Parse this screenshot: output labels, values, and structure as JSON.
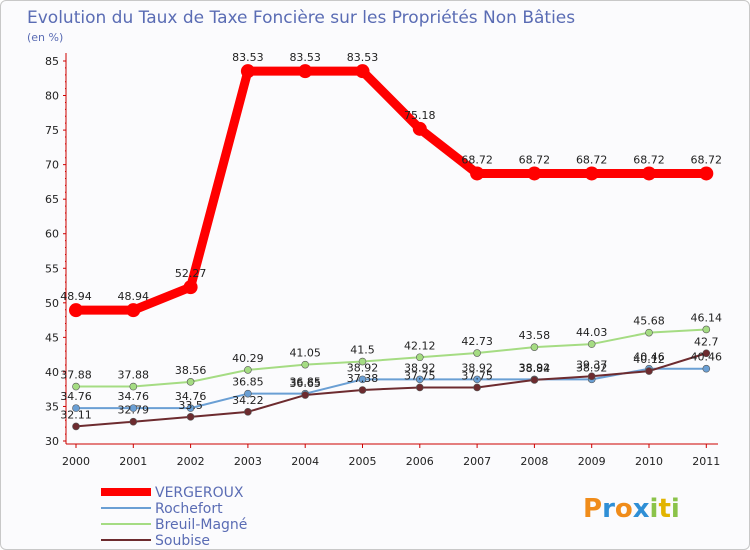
{
  "chart_data": {
    "type": "line",
    "title": "Evolution du Taux de Taxe Foncière sur les Propriétés Non Bâties",
    "subtitle": "(en %)",
    "xlabel": "",
    "ylabel": "",
    "ylim": [
      30,
      85
    ],
    "yticks": [
      "30",
      "35",
      "40",
      "45",
      "50",
      "55",
      "60",
      "65",
      "70",
      "75",
      "80",
      "85"
    ],
    "categories": [
      "2000",
      "2001",
      "2002",
      "2003",
      "2004",
      "2005",
      "2006",
      "2007",
      "2008",
      "2009",
      "2010",
      "2011"
    ],
    "series": [
      {
        "name": "VERGEROUX",
        "color": "#ff0000",
        "values": [
          48.94,
          48.94,
          52.27,
          83.53,
          83.53,
          83.53,
          75.18,
          68.72,
          68.72,
          68.72,
          68.72,
          68.72
        ],
        "labels": [
          "48.94",
          "48.94",
          "52.27",
          "83.53",
          "83.53",
          "83.53",
          "75.18",
          "68.72",
          "68.72",
          "68.72",
          "68.72",
          "68.72"
        ]
      },
      {
        "name": "Rochefort",
        "color": "#6a9fd4",
        "values": [
          34.76,
          34.76,
          34.76,
          36.85,
          36.85,
          38.92,
          38.92,
          38.92,
          38.92,
          38.92,
          40.46,
          40.46
        ],
        "labels": [
          "34.76",
          "34.76",
          "34.76",
          "36.85",
          "36.85",
          "38.92",
          "38.92",
          "38.92",
          "38.92",
          "38.92",
          "40.46",
          "40.46"
        ]
      },
      {
        "name": "Breuil-Magné",
        "color": "#a5dc83",
        "values": [
          37.88,
          37.88,
          38.56,
          40.29,
          41.05,
          41.5,
          42.12,
          42.73,
          43.58,
          44.03,
          45.68,
          46.14
        ],
        "labels": [
          "37.88",
          "37.88",
          "38.56",
          "40.29",
          "41.05",
          "41.5",
          "42.12",
          "42.73",
          "43.58",
          "44.03",
          "45.68",
          "46.14"
        ]
      },
      {
        "name": "Soubise",
        "color": "#6d2b2f",
        "values": [
          32.11,
          32.79,
          33.5,
          34.22,
          36.65,
          37.38,
          37.75,
          37.75,
          38.84,
          39.37,
          40.12,
          42.7
        ],
        "labels": [
          "32.11",
          "32.79",
          "33.5",
          "34.22",
          "36.65",
          "37.38",
          "37.75",
          "37.75",
          "38.84",
          "39.37",
          "40.12",
          "42.7"
        ]
      }
    ],
    "legend": {
      "placement": "bottom-left"
    },
    "grid": false
  },
  "logo": {
    "letters": [
      "P",
      "r",
      "o",
      "x",
      "i",
      "t",
      "i"
    ],
    "colors": [
      "#f08c1a",
      "#2f8fd6",
      "#f08c1a",
      "#2f8fd6",
      "#8bc34a",
      "#e2b400",
      "#8bc34a"
    ]
  }
}
